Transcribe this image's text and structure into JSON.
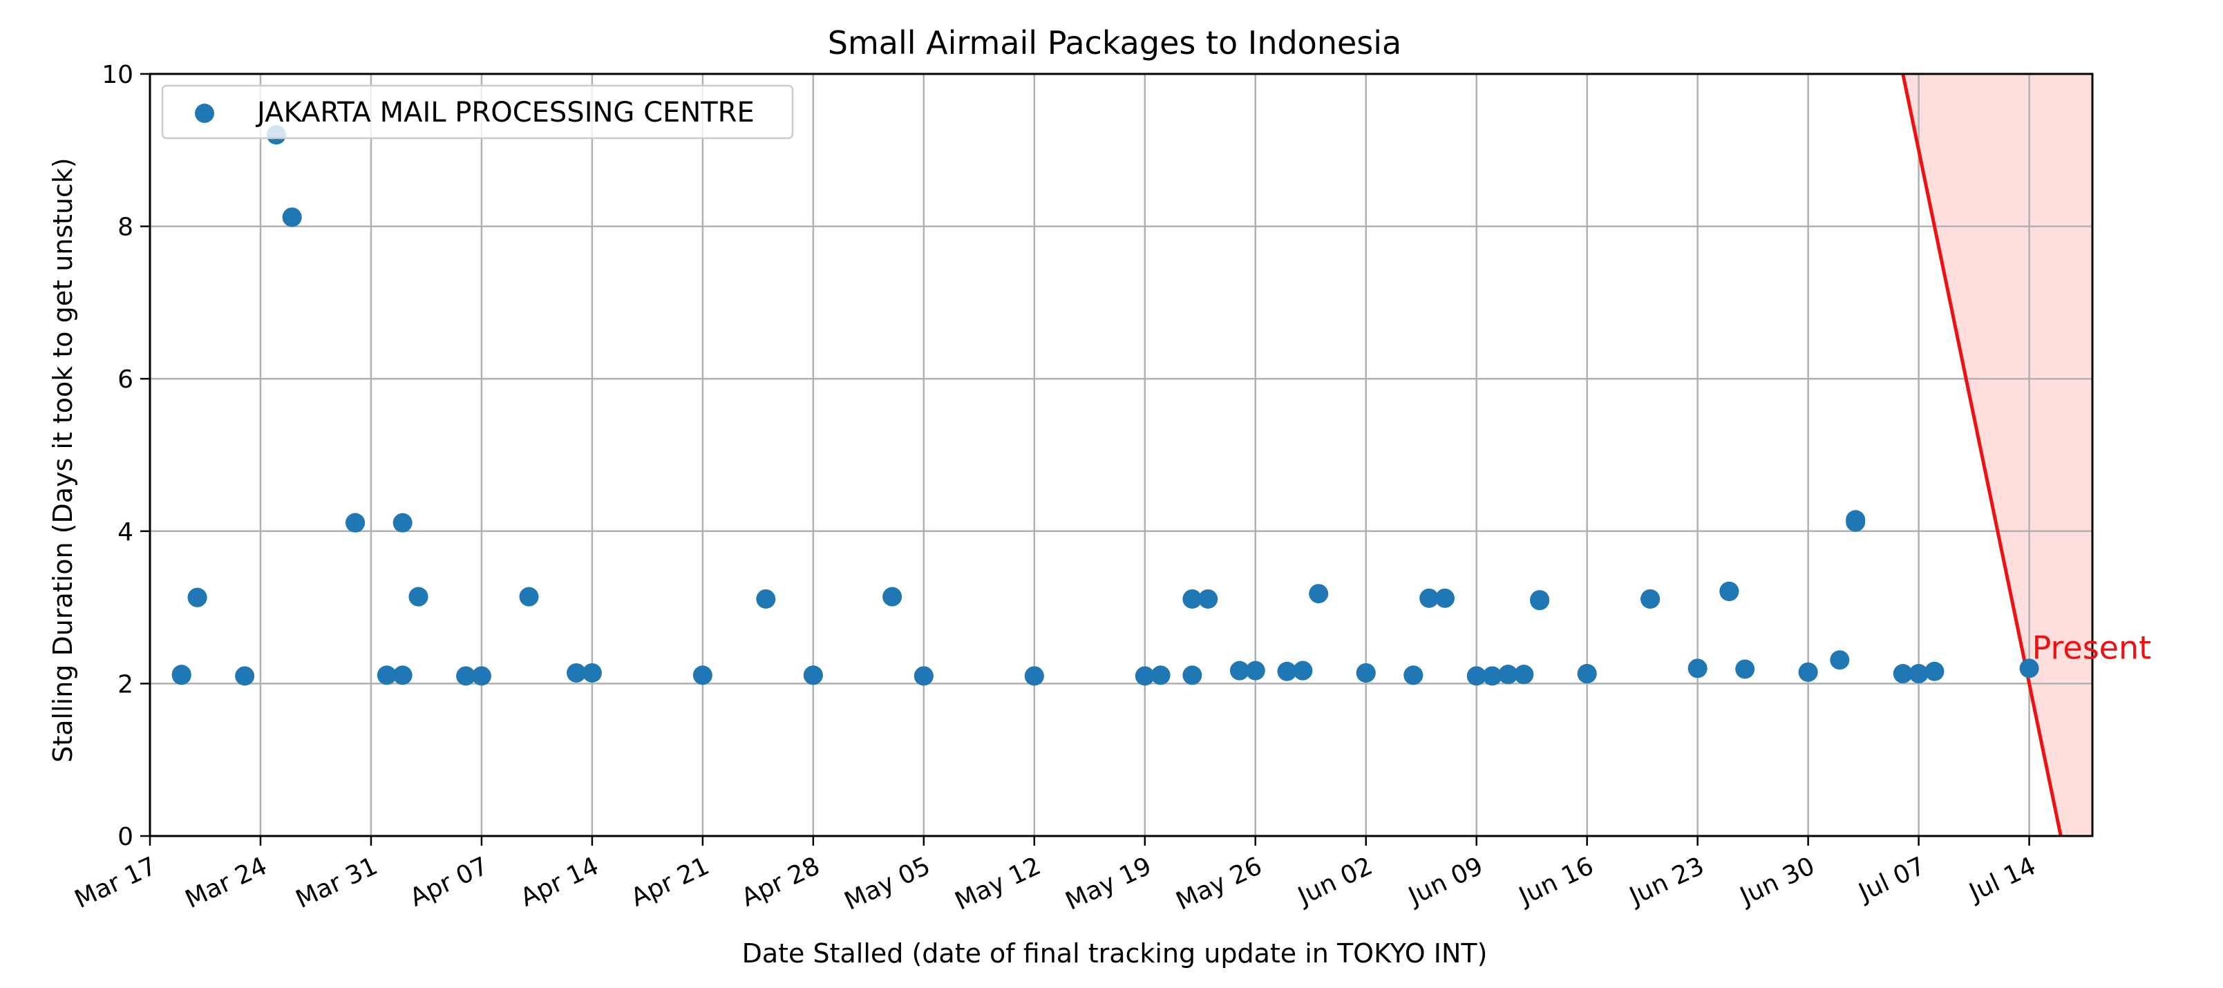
{
  "chart_data": {
    "type": "scatter",
    "title": "Small Airmail Packages to Indonesia",
    "xlabel": "Date Stalled (date of final tracking update in TOKYO INT)",
    "ylabel": "Stalling Duration (Days it took to get unstuck)",
    "x_axis_type": "date",
    "xlim": [
      "2024-03-17",
      "2024-07-18"
    ],
    "ylim": [
      0,
      10
    ],
    "x_ticks": [
      {
        "date": "2024-03-17",
        "label": "Mar 17"
      },
      {
        "date": "2024-03-24",
        "label": "Mar 24"
      },
      {
        "date": "2024-03-31",
        "label": "Mar 31"
      },
      {
        "date": "2024-04-07",
        "label": "Apr 07"
      },
      {
        "date": "2024-04-14",
        "label": "Apr 14"
      },
      {
        "date": "2024-04-21",
        "label": "Apr 21"
      },
      {
        "date": "2024-04-28",
        "label": "Apr 28"
      },
      {
        "date": "2024-05-05",
        "label": "May 05"
      },
      {
        "date": "2024-05-12",
        "label": "May 12"
      },
      {
        "date": "2024-05-19",
        "label": "May 19"
      },
      {
        "date": "2024-05-26",
        "label": "May 26"
      },
      {
        "date": "2024-06-02",
        "label": "Jun 02"
      },
      {
        "date": "2024-06-09",
        "label": "Jun 09"
      },
      {
        "date": "2024-06-16",
        "label": "Jun 16"
      },
      {
        "date": "2024-06-23",
        "label": "Jun 23"
      },
      {
        "date": "2024-06-30",
        "label": "Jun 30"
      },
      {
        "date": "2024-07-07",
        "label": "Jul 07"
      },
      {
        "date": "2024-07-14",
        "label": "Jul 14"
      }
    ],
    "y_ticks": [
      0,
      2,
      4,
      6,
      8,
      10
    ],
    "grid": true,
    "legend_position": "upper-left",
    "series": [
      {
        "name": "JAKARTA MAIL PROCESSING CENTRE",
        "color": "#1f77b4",
        "points": [
          {
            "x": "2024-03-19",
            "y": 2.11
          },
          {
            "x": "2024-03-19",
            "y": 2.12
          },
          {
            "x": "2024-03-20",
            "y": 3.13
          },
          {
            "x": "2024-03-20",
            "y": 3.13
          },
          {
            "x": "2024-03-23",
            "y": 2.1
          },
          {
            "x": "2024-03-25",
            "y": 9.2
          },
          {
            "x": "2024-03-26",
            "y": 8.12
          },
          {
            "x": "2024-03-26",
            "y": 8.12
          },
          {
            "x": "2024-03-30",
            "y": 4.11
          },
          {
            "x": "2024-03-30",
            "y": 4.11
          },
          {
            "x": "2024-04-01",
            "y": 2.11
          },
          {
            "x": "2024-04-02",
            "y": 2.11
          },
          {
            "x": "2024-04-02",
            "y": 4.11
          },
          {
            "x": "2024-04-03",
            "y": 3.14
          },
          {
            "x": "2024-04-03",
            "y": 3.14
          },
          {
            "x": "2024-04-06",
            "y": 2.1
          },
          {
            "x": "2024-04-07",
            "y": 2.1
          },
          {
            "x": "2024-04-10",
            "y": 3.14
          },
          {
            "x": "2024-04-13",
            "y": 2.14
          },
          {
            "x": "2024-04-14",
            "y": 2.14
          },
          {
            "x": "2024-04-21",
            "y": 2.11
          },
          {
            "x": "2024-04-25",
            "y": 3.11
          },
          {
            "x": "2024-04-28",
            "y": 2.11
          },
          {
            "x": "2024-04-28",
            "y": 2.11
          },
          {
            "x": "2024-05-03",
            "y": 3.14
          },
          {
            "x": "2024-05-05",
            "y": 2.1
          },
          {
            "x": "2024-05-05",
            "y": 2.1
          },
          {
            "x": "2024-05-12",
            "y": 2.1
          },
          {
            "x": "2024-05-12",
            "y": 2.1
          },
          {
            "x": "2024-05-19",
            "y": 2.1
          },
          {
            "x": "2024-05-20",
            "y": 2.11
          },
          {
            "x": "2024-05-22",
            "y": 2.11
          },
          {
            "x": "2024-05-22",
            "y": 3.11
          },
          {
            "x": "2024-05-23",
            "y": 3.11
          },
          {
            "x": "2024-05-25",
            "y": 2.17
          },
          {
            "x": "2024-05-26",
            "y": 2.17
          },
          {
            "x": "2024-05-28",
            "y": 2.16
          },
          {
            "x": "2024-05-29",
            "y": 2.17
          },
          {
            "x": "2024-05-29",
            "y": 2.17
          },
          {
            "x": "2024-05-30",
            "y": 3.18
          },
          {
            "x": "2024-06-02",
            "y": 2.14
          },
          {
            "x": "2024-06-02",
            "y": 2.14
          },
          {
            "x": "2024-06-05",
            "y": 2.11
          },
          {
            "x": "2024-06-05",
            "y": 2.11
          },
          {
            "x": "2024-06-06",
            "y": 3.12
          },
          {
            "x": "2024-06-07",
            "y": 3.12
          },
          {
            "x": "2024-06-09",
            "y": 2.1
          },
          {
            "x": "2024-06-10",
            "y": 2.1
          },
          {
            "x": "2024-06-11",
            "y": 2.12
          },
          {
            "x": "2024-06-11",
            "y": 2.12
          },
          {
            "x": "2024-06-12",
            "y": 2.12
          },
          {
            "x": "2024-06-12",
            "y": 2.12
          },
          {
            "x": "2024-06-13",
            "y": 3.1
          },
          {
            "x": "2024-06-13",
            "y": 3.09
          },
          {
            "x": "2024-06-16",
            "y": 2.13
          },
          {
            "x": "2024-06-16",
            "y": 2.13
          },
          {
            "x": "2024-06-20",
            "y": 3.11
          },
          {
            "x": "2024-06-20",
            "y": 3.11
          },
          {
            "x": "2024-06-23",
            "y": 2.2
          },
          {
            "x": "2024-06-25",
            "y": 3.21
          },
          {
            "x": "2024-06-25",
            "y": 3.21
          },
          {
            "x": "2024-06-25",
            "y": 3.21
          },
          {
            "x": "2024-06-26",
            "y": 2.19
          },
          {
            "x": "2024-06-30",
            "y": 2.15
          },
          {
            "x": "2024-06-30",
            "y": 2.15
          },
          {
            "x": "2024-07-02",
            "y": 2.31
          },
          {
            "x": "2024-07-03",
            "y": 4.15
          },
          {
            "x": "2024-07-03",
            "y": 4.12
          },
          {
            "x": "2024-07-06",
            "y": 2.13
          },
          {
            "x": "2024-07-07",
            "y": 2.13
          },
          {
            "x": "2024-07-08",
            "y": 2.16
          },
          {
            "x": "2024-07-14",
            "y": 2.2
          }
        ]
      }
    ],
    "present_marker": {
      "label": "Present",
      "color": "#ee1111",
      "shade_color": "#ffdede",
      "line_from": {
        "x": "2024-07-06",
        "y": 10
      },
      "line_to": {
        "x": "2024-07-16",
        "y": 0
      }
    }
  }
}
